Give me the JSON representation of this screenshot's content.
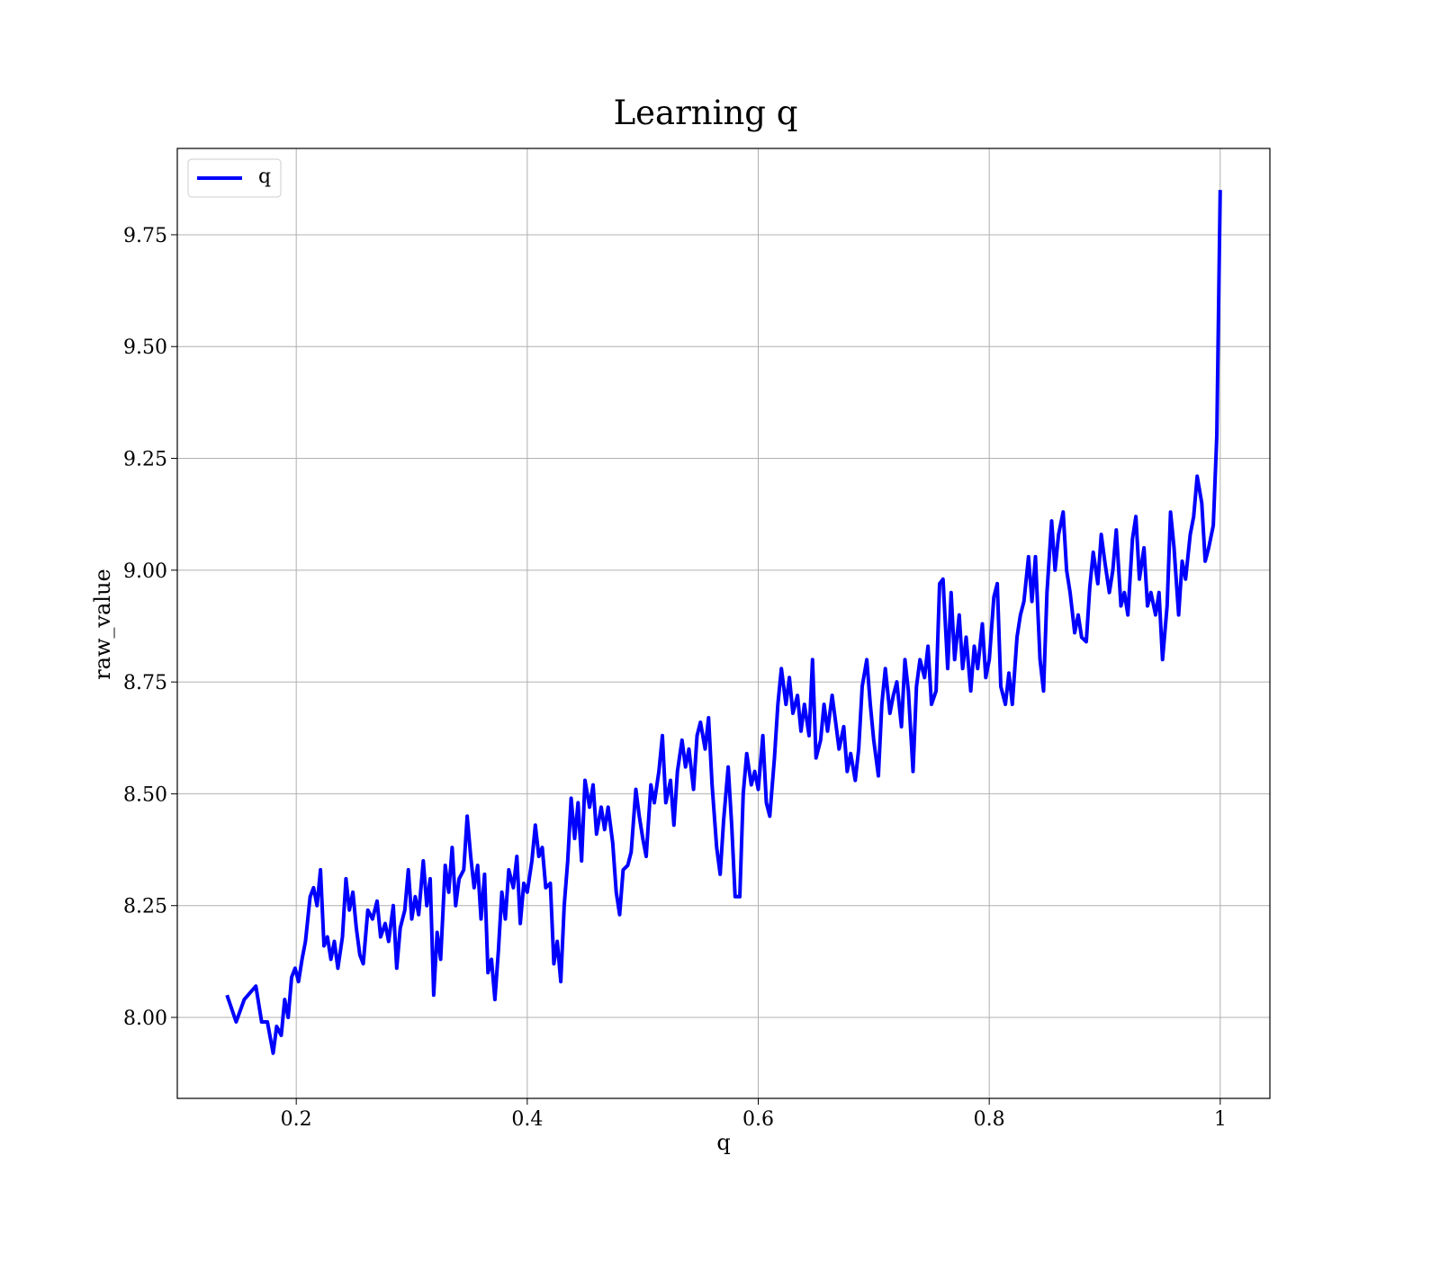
{
  "chart_data": {
    "type": "line",
    "title": "Learning q",
    "xlabel": "q",
    "ylabel": "raw_value",
    "x": [
      0.14,
      0.148,
      0.155,
      0.165,
      0.17,
      0.175,
      0.18,
      0.183,
      0.187,
      0.19,
      0.193,
      0.196,
      0.199,
      0.202,
      0.205,
      0.208,
      0.212,
      0.215,
      0.218,
      0.221,
      0.224,
      0.227,
      0.23,
      0.233,
      0.236,
      0.24,
      0.243,
      0.246,
      0.249,
      0.252,
      0.255,
      0.258,
      0.262,
      0.266,
      0.27,
      0.273,
      0.277,
      0.28,
      0.284,
      0.287,
      0.29,
      0.294,
      0.297,
      0.3,
      0.303,
      0.306,
      0.31,
      0.313,
      0.316,
      0.319,
      0.322,
      0.325,
      0.329,
      0.332,
      0.335,
      0.338,
      0.341,
      0.345,
      0.348,
      0.351,
      0.354,
      0.357,
      0.36,
      0.363,
      0.366,
      0.369,
      0.372,
      0.375,
      0.378,
      0.381,
      0.384,
      0.388,
      0.391,
      0.394,
      0.397,
      0.4,
      0.404,
      0.407,
      0.41,
      0.413,
      0.416,
      0.42,
      0.423,
      0.426,
      0.429,
      0.432,
      0.435,
      0.438,
      0.441,
      0.444,
      0.447,
      0.45,
      0.454,
      0.457,
      0.46,
      0.464,
      0.467,
      0.47,
      0.474,
      0.477,
      0.48,
      0.483,
      0.487,
      0.49,
      0.494,
      0.497,
      0.5,
      0.503,
      0.507,
      0.51,
      0.514,
      0.517,
      0.52,
      0.524,
      0.527,
      0.53,
      0.534,
      0.537,
      0.54,
      0.544,
      0.547,
      0.55,
      0.554,
      0.557,
      0.56,
      0.564,
      0.567,
      0.57,
      0.574,
      0.577,
      0.58,
      0.584,
      0.587,
      0.59,
      0.594,
      0.597,
      0.6,
      0.604,
      0.607,
      0.61,
      0.614,
      0.617,
      0.62,
      0.624,
      0.627,
      0.63,
      0.634,
      0.637,
      0.64,
      0.644,
      0.647,
      0.65,
      0.654,
      0.657,
      0.66,
      0.664,
      0.667,
      0.67,
      0.674,
      0.677,
      0.68,
      0.684,
      0.687,
      0.69,
      0.694,
      0.697,
      0.7,
      0.704,
      0.707,
      0.71,
      0.714,
      0.717,
      0.72,
      0.724,
      0.727,
      0.73,
      0.734,
      0.737,
      0.74,
      0.744,
      0.747,
      0.75,
      0.754,
      0.757,
      0.76,
      0.764,
      0.767,
      0.77,
      0.774,
      0.777,
      0.78,
      0.784,
      0.787,
      0.79,
      0.794,
      0.797,
      0.8,
      0.804,
      0.807,
      0.81,
      0.814,
      0.817,
      0.82,
      0.824,
      0.827,
      0.83,
      0.834,
      0.837,
      0.84,
      0.844,
      0.847,
      0.85,
      0.854,
      0.857,
      0.86,
      0.864,
      0.867,
      0.87,
      0.874,
      0.877,
      0.88,
      0.884,
      0.887,
      0.89,
      0.894,
      0.897,
      0.9,
      0.904,
      0.907,
      0.91,
      0.914,
      0.917,
      0.92,
      0.924,
      0.927,
      0.93,
      0.934,
      0.937,
      0.94,
      0.944,
      0.947,
      0.95,
      0.954,
      0.957,
      0.96,
      0.964,
      0.967,
      0.97,
      0.974,
      0.977,
      0.98,
      0.984,
      0.987,
      0.99,
      0.994,
      0.997,
      1.0
    ],
    "series": [
      {
        "name": "q",
        "color": "#0000ff",
        "values": [
          8.05,
          7.99,
          8.04,
          8.07,
          7.99,
          7.99,
          7.92,
          7.98,
          7.96,
          8.04,
          8.0,
          8.09,
          8.11,
          8.08,
          8.13,
          8.17,
          8.27,
          8.29,
          8.25,
          8.33,
          8.16,
          8.18,
          8.13,
          8.17,
          8.11,
          8.18,
          8.31,
          8.24,
          8.28,
          8.2,
          8.14,
          8.12,
          8.24,
          8.22,
          8.26,
          8.18,
          8.21,
          8.17,
          8.25,
          8.11,
          8.2,
          8.24,
          8.33,
          8.22,
          8.27,
          8.23,
          8.35,
          8.25,
          8.31,
          8.05,
          8.19,
          8.13,
          8.34,
          8.28,
          8.38,
          8.25,
          8.31,
          8.33,
          8.45,
          8.36,
          8.29,
          8.34,
          8.22,
          8.32,
          8.1,
          8.13,
          8.04,
          8.15,
          8.28,
          8.22,
          8.33,
          8.29,
          8.36,
          8.21,
          8.3,
          8.28,
          8.35,
          8.43,
          8.36,
          8.38,
          8.29,
          8.3,
          8.12,
          8.17,
          8.08,
          8.25,
          8.35,
          8.49,
          8.4,
          8.48,
          8.35,
          8.53,
          8.47,
          8.52,
          8.41,
          8.47,
          8.42,
          8.47,
          8.39,
          8.28,
          8.23,
          8.33,
          8.34,
          8.37,
          8.51,
          8.45,
          8.4,
          8.36,
          8.52,
          8.48,
          8.55,
          8.63,
          8.48,
          8.53,
          8.43,
          8.55,
          8.62,
          8.56,
          8.6,
          8.51,
          8.63,
          8.66,
          8.6,
          8.67,
          8.52,
          8.38,
          8.32,
          8.44,
          8.56,
          8.43,
          8.27,
          8.27,
          8.5,
          8.59,
          8.52,
          8.55,
          8.51,
          8.63,
          8.48,
          8.45,
          8.58,
          8.7,
          8.78,
          8.7,
          8.76,
          8.68,
          8.72,
          8.64,
          8.7,
          8.63,
          8.8,
          8.58,
          8.62,
          8.7,
          8.64,
          8.72,
          8.66,
          8.6,
          8.65,
          8.55,
          8.59,
          8.53,
          8.6,
          8.74,
          8.8,
          8.7,
          8.62,
          8.54,
          8.7,
          8.78,
          8.68,
          8.72,
          8.75,
          8.65,
          8.8,
          8.73,
          8.55,
          8.74,
          8.8,
          8.76,
          8.83,
          8.7,
          8.73,
          8.97,
          8.98,
          8.78,
          8.95,
          8.8,
          8.9,
          8.78,
          8.85,
          8.73,
          8.83,
          8.78,
          8.88,
          8.76,
          8.8,
          8.94,
          8.97,
          8.74,
          8.7,
          8.77,
          8.7,
          8.85,
          8.9,
          8.93,
          9.03,
          8.93,
          9.03,
          8.8,
          8.73,
          8.95,
          9.11,
          9.0,
          9.08,
          9.13,
          9.0,
          8.95,
          8.86,
          8.9,
          8.85,
          8.84,
          8.96,
          9.04,
          8.97,
          9.08,
          9.02,
          8.95,
          9.0,
          9.09,
          8.92,
          8.95,
          8.9,
          9.07,
          9.12,
          8.98,
          9.05,
          8.92,
          8.95,
          8.9,
          8.95,
          8.8,
          8.92,
          9.13,
          9.05,
          8.9,
          9.02,
          8.98,
          9.08,
          9.12,
          9.21,
          9.15,
          9.02,
          9.05,
          9.1,
          9.3,
          9.85
        ]
      }
    ],
    "xlim": [
      0.097,
      1.043
    ],
    "xticks": [
      0.2,
      0.4,
      0.6,
      0.8,
      1.0
    ],
    "ylim": [
      7.819,
      9.943
    ],
    "yticks": [
      {
        "value": 8.0,
        "label": "8.00"
      },
      8.25,
      {
        "value": 8.5,
        "label": "8.50"
      },
      8.75,
      {
        "value": 9.0,
        "label": "9.00"
      },
      9.25,
      {
        "value": 9.5,
        "label": "9.50"
      },
      9.75
    ],
    "grid": true,
    "legend": "upper left"
  }
}
